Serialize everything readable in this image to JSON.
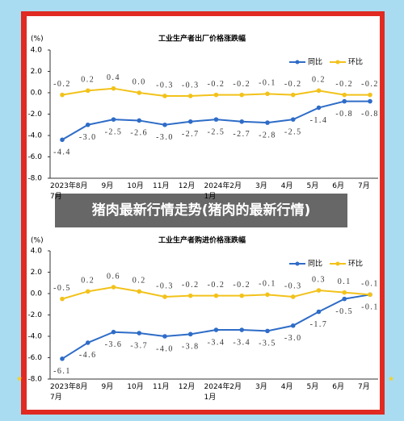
{
  "banner": "猪肉最新行情走势(猪肉的最新行情)",
  "chart_data": [
    {
      "type": "line",
      "title": "工业生产者出厂价格涨跌幅",
      "ylabel": "(%)",
      "categories": [
        "2023年\n7月",
        "8月",
        "9月",
        "10月",
        "11月",
        "12月",
        "2024年\n1月",
        "2月",
        "3月",
        "4月",
        "5月",
        "6月",
        "7月"
      ],
      "series": [
        {
          "name": "同比",
          "color": "#2e6cc7",
          "values": [
            -4.4,
            -3.0,
            -2.5,
            -2.6,
            -3.0,
            -2.7,
            -2.5,
            -2.7,
            -2.8,
            -2.5,
            -1.4,
            -0.8,
            -0.8
          ],
          "value_labels": [
            "-4.4",
            "-3.0",
            "-2.5",
            "-2.6",
            "-3.0",
            "-2.7",
            "-2.5",
            "-2.7",
            "-2.8",
            "-2.5",
            "-1.4",
            "-0.8",
            "-0.8"
          ]
        },
        {
          "name": "环比",
          "color": "#f2c21a",
          "values": [
            -0.2,
            0.2,
            0.4,
            0.0,
            -0.3,
            -0.3,
            -0.2,
            -0.2,
            -0.1,
            -0.2,
            0.2,
            -0.2,
            -0.2
          ],
          "value_labels": [
            "-0.2",
            "0.2",
            "0.4",
            "0.0",
            "-0.3",
            "-0.3",
            "-0.2",
            "-0.2",
            "-0.1",
            "-0.2",
            "0.2",
            "-0.2",
            "-0.2"
          ]
        }
      ],
      "ylim": [
        -8,
        4
      ],
      "yticks": [
        {
          "value": 4,
          "label": "4.0"
        },
        {
          "value": 2,
          "label": "2.0"
        },
        {
          "value": 0,
          "label": "0.0"
        },
        {
          "value": -2,
          "label": "-2.0"
        },
        {
          "value": -4,
          "label": "-4.0"
        },
        {
          "value": -6,
          "label": "-6.0"
        },
        {
          "value": -8,
          "label": "-8.0"
        }
      ],
      "grid": false,
      "legend": "top-right"
    },
    {
      "type": "line",
      "title": "工业生产者购进价格涨跌幅",
      "ylabel": "(%)",
      "categories": [
        "2023年\n7月",
        "8月",
        "9月",
        "10月",
        "11月",
        "12月",
        "2024年\n1月",
        "2月",
        "3月",
        "4月",
        "5月",
        "6月",
        "7月"
      ],
      "series": [
        {
          "name": "同比",
          "color": "#2e6cc7",
          "values": [
            -6.1,
            -4.6,
            -3.6,
            -3.7,
            -4.0,
            -3.8,
            -3.4,
            -3.4,
            -3.5,
            -3.0,
            -1.7,
            -0.5,
            -0.1
          ],
          "value_labels": [
            "-6.1",
            "-4.6",
            "-3.6",
            "-3.7",
            "-4.0",
            "-3.8",
            "-3.4",
            "-3.4",
            "-3.5",
            "-3.0",
            "-1.7",
            "-0.5",
            "-0.1"
          ]
        },
        {
          "name": "环比",
          "color": "#f2c21a",
          "values": [
            -0.5,
            0.2,
            0.6,
            0.2,
            -0.3,
            -0.2,
            -0.2,
            -0.2,
            -0.1,
            -0.3,
            0.3,
            0.1,
            -0.1
          ],
          "value_labels": [
            "-0.5",
            "0.2",
            "0.6",
            "0.2",
            "-0.3",
            "-0.2",
            "-0.2",
            "-0.2",
            "-0.1",
            "-0.3",
            "0.3",
            "0.1",
            "-0.1"
          ]
        }
      ],
      "ylim": [
        -8,
        4
      ],
      "yticks": [
        {
          "value": 4,
          "label": "4.0"
        },
        {
          "value": 2,
          "label": "2.0"
        },
        {
          "value": 0,
          "label": "0.0"
        },
        {
          "value": -2,
          "label": "-2.0"
        },
        {
          "value": -4,
          "label": "-4.0"
        },
        {
          "value": -6,
          "label": "-6.0"
        },
        {
          "value": -8,
          "label": "-8.0"
        }
      ],
      "grid": false,
      "legend": "top-right"
    }
  ]
}
